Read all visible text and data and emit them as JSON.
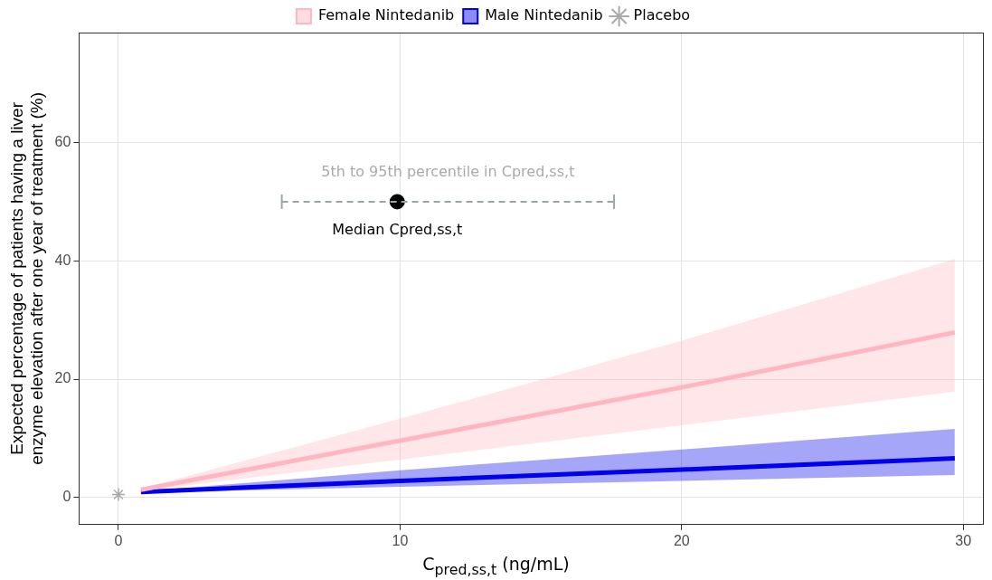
{
  "chart_data": {
    "type": "line",
    "xlabel": "C$_{pred,ss,t}$ (ng/mL)",
    "ylabel": "Expected percentage of patients having a liver enzyme elevation after one year of treatment (%)",
    "xlim": [
      -1.4,
      30.7
    ],
    "xticks": [
      0,
      10,
      20,
      30
    ],
    "ylim": [
      -4.6,
      78.6
    ],
    "yticks": [
      0,
      20,
      40,
      60
    ],
    "grid": true,
    "legend": "top",
    "series": [
      {
        "name": "Female Nintedanib",
        "color": "#ffb6c1",
        "x": [
          0.8,
          10,
          20,
          29.7
        ],
        "values": [
          1.3,
          9.6,
          18.6,
          27.9
        ],
        "lower": [
          1.1,
          6.4,
          12.2,
          17.9
        ],
        "upper": [
          1.5,
          13.3,
          26.5,
          40.3
        ]
      },
      {
        "name": "Male Nintedanib",
        "color": "#0000ee",
        "x": [
          0.8,
          10,
          20,
          29.7
        ],
        "values": [
          0.9,
          2.8,
          4.7,
          6.6
        ],
        "lower": [
          0.8,
          1.8,
          2.8,
          3.8
        ],
        "upper": [
          1.0,
          4.6,
          8.1,
          11.6
        ]
      },
      {
        "name": "Placebo",
        "type": "scatter",
        "marker": "cross",
        "color": "#aaaaaa",
        "x": [
          0
        ],
        "values": [
          0.5
        ]
      },
      {
        "type": "scatter",
        "marker": "circle",
        "color": "#000000",
        "x": [
          9.9
        ],
        "values": [
          50
        ],
        "xerrors": [
          [
            5.8,
            17.6
          ]
        ]
      }
    ],
    "annotations": [
      "5th to 95th percentile in Cpred,ss,t",
      "Median Cpred,ss,t"
    ]
  }
}
